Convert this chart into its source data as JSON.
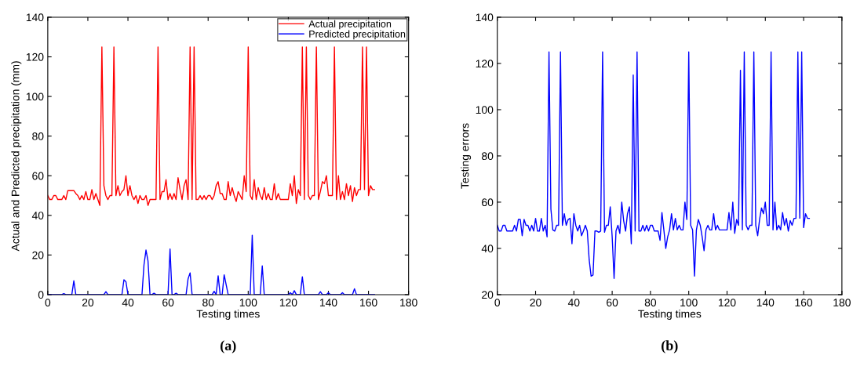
{
  "chart_data": [
    {
      "type": "line",
      "xlabel": "Testing times",
      "ylabel": "Actual and Predicted precipitation (mm)",
      "xlim": [
        0,
        180
      ],
      "xticks": [
        0,
        20,
        40,
        60,
        80,
        100,
        120,
        140,
        160,
        180
      ],
      "ylim": [
        0,
        140
      ],
      "yticks": [
        0,
        20,
        40,
        60,
        80,
        100,
        120,
        140
      ],
      "grid": false,
      "legend": "top right",
      "annotations": [
        "(a)"
      ],
      "series": [
        {
          "name": "Actual precipitation",
          "color": "#ff0000",
          "x": [
            0,
            1,
            2,
            3,
            4,
            5,
            6,
            7,
            8,
            9,
            10,
            13,
            14,
            15,
            16,
            17,
            18,
            19,
            20,
            21,
            22,
            23,
            24,
            25,
            26,
            27,
            28,
            29,
            30,
            31,
            32,
            33,
            34,
            35,
            36,
            37,
            38,
            39,
            40,
            41,
            42,
            43,
            44,
            45,
            46,
            47,
            48,
            49,
            50,
            51,
            54,
            55,
            56,
            57,
            58,
            59,
            60,
            61,
            62,
            63,
            64,
            65,
            66,
            67,
            68,
            69,
            70,
            71,
            72,
            73,
            74,
            75,
            76,
            77,
            78,
            79,
            80,
            81,
            82,
            83,
            84,
            85,
            86,
            87,
            88,
            89,
            90,
            91,
            92,
            93,
            94,
            95,
            96,
            97,
            98,
            99,
            100,
            101,
            102,
            103,
            104,
            105,
            106,
            107,
            108,
            109,
            110,
            111,
            112,
            113,
            114,
            115,
            116,
            120,
            121,
            122,
            123,
            124,
            125,
            126,
            127,
            128,
            129,
            130,
            131,
            132,
            133,
            134,
            135,
            136,
            137,
            138,
            139,
            140,
            141,
            142,
            143,
            144,
            145,
            146,
            147,
            148,
            149,
            150,
            151,
            152,
            153,
            154,
            155,
            156,
            157,
            158,
            159,
            160,
            161,
            162,
            163
          ],
          "values": [
            50,
            48,
            48,
            50,
            50,
            48,
            48,
            48,
            50,
            48,
            52.5,
            52.5,
            51,
            50,
            48,
            50,
            48,
            52,
            48,
            48,
            53,
            48,
            51,
            48,
            45,
            125,
            55,
            50,
            48,
            50,
            50,
            125,
            50,
            55,
            50,
            52,
            53,
            60,
            50,
            55,
            50,
            48,
            50,
            46,
            50,
            48,
            48,
            50,
            45,
            48,
            48,
            125,
            48,
            52,
            52,
            58,
            48,
            51,
            48,
            51,
            48,
            59,
            53,
            48,
            55,
            58,
            48,
            125,
            48,
            125,
            48,
            48,
            50,
            48,
            50,
            48,
            50,
            50,
            48,
            50,
            55,
            57,
            51,
            51,
            48,
            48,
            57,
            50,
            54,
            50,
            47,
            52,
            50,
            48,
            60,
            52,
            125,
            50,
            48,
            58,
            48,
            54,
            50,
            48,
            54,
            48,
            51,
            48,
            48,
            56,
            48,
            51,
            48,
            48,
            56,
            50,
            60,
            46,
            53,
            50,
            125,
            48,
            125,
            50,
            48,
            50,
            50,
            125,
            48,
            52,
            57,
            56,
            60,
            50,
            50,
            50,
            125,
            48,
            60,
            48,
            52,
            48,
            56,
            50,
            55,
            47,
            54,
            50,
            53,
            53,
            125,
            53,
            125,
            50,
            55,
            53,
            53
          ]
        },
        {
          "name": "Predicted precipitation",
          "color": "#0000ff",
          "x": [
            0,
            7,
            8,
            9,
            12,
            13,
            14,
            28,
            29,
            30,
            37,
            38,
            39,
            40,
            47,
            48,
            49,
            50,
            51,
            52,
            53,
            54,
            60,
            61,
            62,
            63,
            64,
            65,
            69,
            70,
            71,
            72,
            82,
            83,
            84,
            85,
            86,
            87,
            88,
            89,
            90,
            101,
            102,
            103,
            106,
            107,
            108,
            120,
            121,
            122,
            123,
            124,
            126,
            127,
            128,
            135,
            136,
            137,
            139,
            140,
            141,
            146,
            147,
            148,
            152,
            153,
            154,
            163
          ],
          "values": [
            0,
            0,
            0.5,
            0,
            0,
            7,
            0,
            0,
            1.5,
            0,
            0,
            7.5,
            6.5,
            0,
            0,
            15,
            22.5,
            17,
            0,
            0,
            0.7,
            0,
            0,
            23,
            0,
            0,
            0.7,
            0,
            0,
            8,
            11,
            0,
            0,
            1.7,
            0,
            9.5,
            0,
            0,
            10,
            5,
            0,
            0,
            30,
            0,
            0,
            14.5,
            0,
            0,
            1,
            0,
            2,
            0,
            0,
            9,
            0,
            0,
            1.5,
            0,
            0,
            1,
            0,
            0,
            1,
            0,
            0,
            3,
            0,
            0
          ]
        }
      ]
    },
    {
      "type": "line",
      "xlabel": "Testing times",
      "ylabel": "Testing errors",
      "xlim": [
        0,
        180
      ],
      "xticks": [
        0,
        20,
        40,
        60,
        80,
        100,
        120,
        140,
        160,
        180
      ],
      "ylim": [
        20,
        140
      ],
      "yticks": [
        20,
        40,
        60,
        80,
        100,
        120,
        140
      ],
      "grid": false,
      "legend": false,
      "annotations": [
        "(b)"
      ],
      "series": [
        {
          "color": "#0000ff",
          "x": [
            0,
            1,
            2,
            3,
            4,
            5,
            6,
            7,
            8,
            9,
            10,
            11,
            12,
            13,
            14,
            15,
            16,
            17,
            18,
            19,
            20,
            21,
            22,
            23,
            24,
            25,
            26,
            27,
            28,
            29,
            30,
            31,
            32,
            33,
            34,
            35,
            36,
            37,
            38,
            39,
            40,
            41,
            42,
            43,
            44,
            45,
            46,
            47,
            48,
            49,
            50,
            51,
            52,
            53,
            54,
            55,
            56,
            57,
            58,
            59,
            60,
            61,
            62,
            63,
            64,
            65,
            66,
            67,
            68,
            69,
            70,
            71,
            72,
            73,
            74,
            75,
            76,
            77,
            78,
            79,
            80,
            81,
            82,
            83,
            84,
            85,
            86,
            87,
            88,
            89,
            90,
            91,
            92,
            93,
            94,
            95,
            96,
            97,
            98,
            99,
            100,
            101,
            102,
            103,
            104,
            105,
            106,
            107,
            108,
            109,
            110,
            111,
            112,
            113,
            114,
            115,
            116,
            120,
            121,
            122,
            123,
            124,
            125,
            126,
            127,
            128,
            129,
            130,
            131,
            132,
            133,
            134,
            135,
            136,
            137,
            138,
            139,
            140,
            141,
            142,
            143,
            144,
            145,
            146,
            147,
            148,
            149,
            150,
            151,
            152,
            153,
            154,
            155,
            156,
            157,
            158,
            159,
            160,
            161,
            162,
            163
          ],
          "values": [
            50,
            47.5,
            47.5,
            50,
            50,
            47.5,
            47.5,
            47.5,
            47.5,
            50,
            47.5,
            52.5,
            52.5,
            45.5,
            52.5,
            50,
            50,
            47.5,
            50,
            47.5,
            53,
            47.5,
            47.5,
            53,
            47.5,
            50,
            45,
            125,
            57,
            48,
            47.5,
            50,
            50,
            125,
            50,
            55,
            50,
            52.5,
            53,
            42,
            55,
            50,
            47.5,
            50,
            45.5,
            47.5,
            50,
            47.5,
            35,
            28,
            28.5,
            47.5,
            47.5,
            47,
            47.5,
            125,
            47,
            50,
            50,
            58,
            45,
            27,
            47.5,
            50,
            46.5,
            60,
            52,
            47.5,
            55,
            58,
            42,
            115,
            47.5,
            125,
            47.5,
            47.5,
            50,
            47.5,
            50,
            47.5,
            50,
            50,
            47.5,
            47.5,
            47.5,
            43.5,
            55.5,
            48,
            40,
            45,
            48,
            55,
            48,
            53,
            48,
            50,
            48,
            48,
            60,
            52.5,
            125,
            50,
            48,
            28,
            48,
            52.5,
            50,
            45,
            39,
            48,
            50,
            48,
            48,
            55,
            48,
            50,
            48,
            48,
            55.5,
            48,
            60,
            46.5,
            52.5,
            50,
            117,
            48,
            125,
            50,
            48,
            50,
            50,
            125,
            50,
            45.5,
            52.5,
            57.5,
            55,
            60,
            50,
            50,
            125,
            48,
            60,
            48,
            50,
            48,
            55.5,
            50,
            53,
            47.5,
            52,
            50,
            53,
            53,
            125,
            53,
            125,
            49,
            55,
            53,
            53
          ]
        }
      ]
    }
  ]
}
